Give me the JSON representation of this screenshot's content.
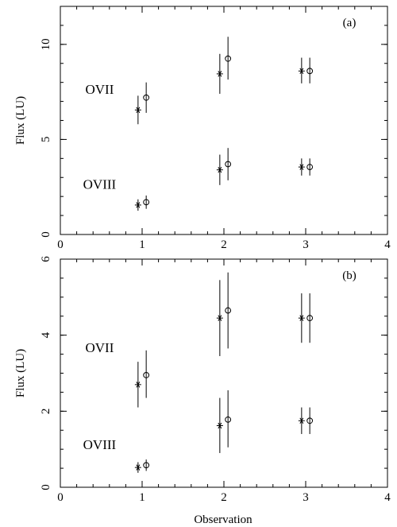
{
  "figure": {
    "xlabel": "Observation",
    "ylabel": "Flux (LU)"
  },
  "chart_data": [
    {
      "type": "scatter",
      "panel_label": "(a)",
      "xlabel": "",
      "ylabel": "Flux (LU)",
      "xlim": [
        0,
        4
      ],
      "ylim": [
        0,
        12
      ],
      "xticks": [
        "0",
        "1",
        "2",
        "3",
        "4"
      ],
      "yticks": [
        {
          "v": 0,
          "t": "0"
        },
        {
          "v": 5,
          "t": "5"
        },
        {
          "v": 10,
          "t": "10"
        }
      ],
      "annotations": [
        {
          "text": "OVII",
          "x": 0.48,
          "y": 7.4
        },
        {
          "text": "OVIII",
          "x": 0.48,
          "y": 2.4
        }
      ],
      "series": [
        {
          "marker": "asterisk",
          "points": [
            {
              "x": 0.95,
              "y": 6.55,
              "lo": 5.8,
              "hi": 7.3
            },
            {
              "x": 1.95,
              "y": 8.45,
              "lo": 7.4,
              "hi": 9.5
            },
            {
              "x": 2.95,
              "y": 8.6,
              "lo": 7.95,
              "hi": 9.3
            }
          ]
        },
        {
          "marker": "circle",
          "points": [
            {
              "x": 1.05,
              "y": 7.2,
              "lo": 6.4,
              "hi": 8.0
            },
            {
              "x": 2.05,
              "y": 9.25,
              "lo": 8.15,
              "hi": 10.4
            },
            {
              "x": 3.05,
              "y": 8.6,
              "lo": 7.95,
              "hi": 9.3
            }
          ]
        },
        {
          "marker": "asterisk",
          "points": [
            {
              "x": 0.95,
              "y": 1.55,
              "lo": 1.25,
              "hi": 1.85
            },
            {
              "x": 1.95,
              "y": 3.4,
              "lo": 2.6,
              "hi": 4.2
            },
            {
              "x": 2.95,
              "y": 3.55,
              "lo": 3.1,
              "hi": 4.0
            }
          ]
        },
        {
          "marker": "circle",
          "points": [
            {
              "x": 1.05,
              "y": 1.7,
              "lo": 1.35,
              "hi": 2.05
            },
            {
              "x": 2.05,
              "y": 3.7,
              "lo": 2.85,
              "hi": 4.55
            },
            {
              "x": 3.05,
              "y": 3.55,
              "lo": 3.1,
              "hi": 4.0
            }
          ]
        }
      ]
    },
    {
      "type": "scatter",
      "panel_label": "(b)",
      "xlabel": "Observation",
      "ylabel": "Flux (LU)",
      "xlim": [
        0,
        4
      ],
      "ylim": [
        0,
        6
      ],
      "xticks": [
        "0",
        "1",
        "2",
        "3",
        "4"
      ],
      "yticks": [
        {
          "v": 0,
          "t": "0"
        },
        {
          "v": 2,
          "t": "2"
        },
        {
          "v": 4,
          "t": "4"
        },
        {
          "v": 6,
          "t": "6"
        }
      ],
      "annotations": [
        {
          "text": "OVII",
          "x": 0.48,
          "y": 3.55
        },
        {
          "text": "OVIII",
          "x": 0.48,
          "y": 1.0
        }
      ],
      "series": [
        {
          "marker": "asterisk",
          "points": [
            {
              "x": 0.95,
              "y": 2.7,
              "lo": 2.1,
              "hi": 3.3
            },
            {
              "x": 1.95,
              "y": 4.45,
              "lo": 3.45,
              "hi": 5.45
            },
            {
              "x": 2.95,
              "y": 4.45,
              "lo": 3.8,
              "hi": 5.1
            }
          ]
        },
        {
          "marker": "circle",
          "points": [
            {
              "x": 1.05,
              "y": 2.95,
              "lo": 2.35,
              "hi": 3.6
            },
            {
              "x": 2.05,
              "y": 4.65,
              "lo": 3.65,
              "hi": 5.65
            },
            {
              "x": 3.05,
              "y": 4.45,
              "lo": 3.8,
              "hi": 5.1
            }
          ]
        },
        {
          "marker": "asterisk",
          "points": [
            {
              "x": 0.95,
              "y": 0.52,
              "lo": 0.38,
              "hi": 0.66
            },
            {
              "x": 1.95,
              "y": 1.62,
              "lo": 0.9,
              "hi": 2.35
            },
            {
              "x": 2.95,
              "y": 1.75,
              "lo": 1.4,
              "hi": 2.1
            }
          ]
        },
        {
          "marker": "circle",
          "points": [
            {
              "x": 1.05,
              "y": 0.58,
              "lo": 0.43,
              "hi": 0.73
            },
            {
              "x": 2.05,
              "y": 1.78,
              "lo": 1.05,
              "hi": 2.55
            },
            {
              "x": 3.05,
              "y": 1.75,
              "lo": 1.4,
              "hi": 2.1
            }
          ]
        }
      ]
    }
  ]
}
